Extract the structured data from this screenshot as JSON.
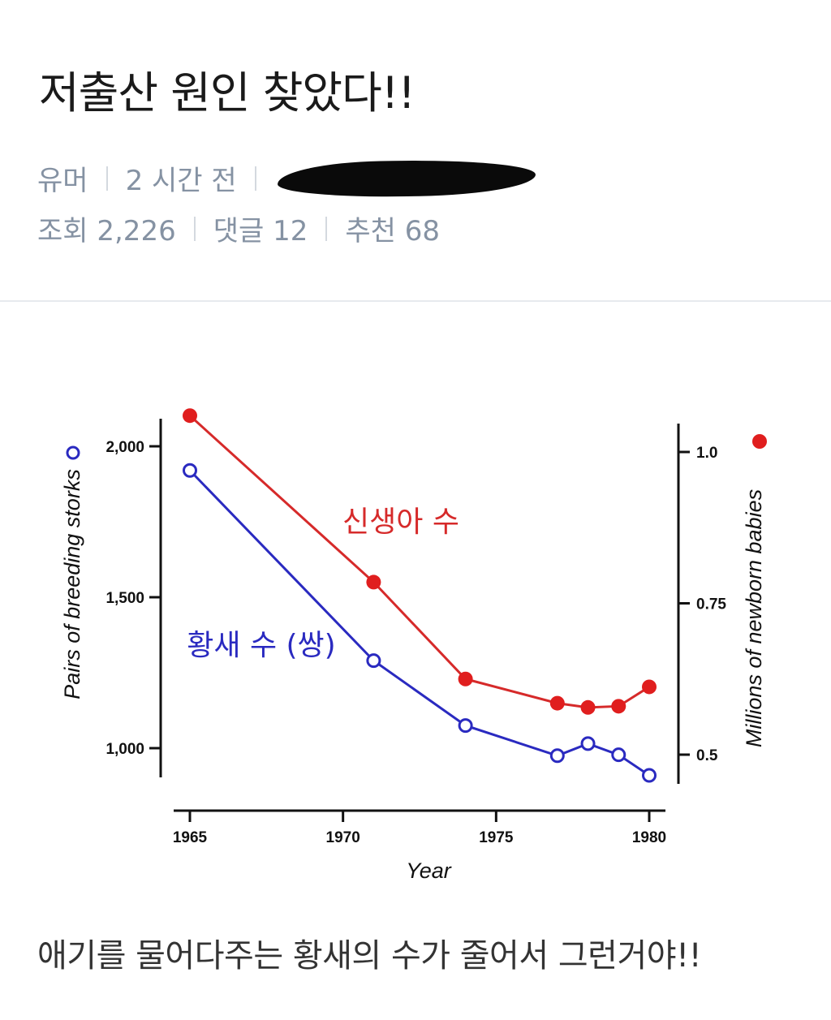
{
  "post": {
    "title": "저출산 원인 찾았다!!",
    "category": "유머",
    "time_ago": "2 시간 전",
    "views": "조회 2,226",
    "comments": "댓글 12",
    "likes": "추천 68",
    "caption": "애기를 물어다주는 황새의 수가 줄어서 그런거야!!"
  },
  "chart_data": {
    "type": "line",
    "xlabel": "Year",
    "xlim": [
      1965,
      1980
    ],
    "x_ticks": [
      "1965",
      "1970",
      "1975",
      "1980"
    ],
    "left_axis": {
      "label": "Pairs of breeding storks",
      "range": [
        1000,
        2000
      ],
      "ticks": [
        "1,000",
        "1,500",
        "2,000"
      ]
    },
    "right_axis": {
      "label": "Millions of newborn babies",
      "range": [
        0.5,
        1.0
      ],
      "ticks": [
        "0.5",
        "0.75",
        "1.0"
      ]
    },
    "series": [
      {
        "name": "신생아 수",
        "axis": "right",
        "color": "#d62a2a",
        "marker": "filled-circle",
        "x": [
          1965,
          1971,
          1974,
          1977,
          1978,
          1979,
          1980
        ],
        "y": [
          1.06,
          0.785,
          0.625,
          0.585,
          0.578,
          0.58,
          0.612
        ]
      },
      {
        "name": "황새 수 (쌍)",
        "axis": "left",
        "color": "#2a2ac0",
        "marker": "open-circle",
        "x": [
          1965,
          1971,
          1974,
          1977,
          1978,
          1979,
          1980
        ],
        "y": [
          1920,
          1290,
          1075,
          975,
          1015,
          978,
          910
        ]
      }
    ]
  }
}
